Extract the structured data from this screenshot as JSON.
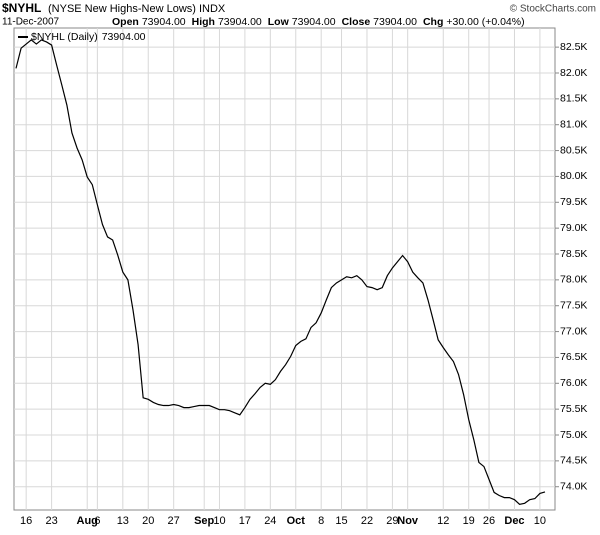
{
  "header": {
    "date": "11-Dec-2007",
    "fields": [
      {
        "label": "Open",
        "value": "73904.00"
      },
      {
        "label": "High",
        "value": "73904.00"
      },
      {
        "label": "Low",
        "value": "73904.00"
      },
      {
        "label": "Close",
        "value": "73904.00"
      },
      {
        "label": "Chg",
        "value": "+30.00 (+0.04%)"
      }
    ],
    "credit": "© StockCharts.com"
  },
  "chart_data": {
    "type": "line",
    "title": "$NYHL",
    "subtitle": "(NYSE New Highs-New Lows) INDX",
    "categories": [
      null,
      null,
      "16",
      null,
      null,
      null,
      null,
      "23",
      null,
      null,
      null,
      null,
      null,
      null,
      "Aug",
      null,
      "6",
      null,
      null,
      null,
      null,
      "13",
      null,
      null,
      null,
      null,
      "20",
      null,
      null,
      null,
      null,
      "27",
      null,
      null,
      null,
      null,
      null,
      "Sep",
      null,
      null,
      "10",
      null,
      null,
      null,
      null,
      "17",
      null,
      null,
      null,
      null,
      "24",
      null,
      null,
      null,
      null,
      "Oct",
      null,
      null,
      null,
      null,
      "8",
      null,
      null,
      null,
      "15",
      null,
      null,
      null,
      null,
      "22",
      null,
      null,
      null,
      null,
      "29",
      null,
      null,
      "Nov",
      null,
      null,
      null,
      null,
      null,
      null,
      "12",
      null,
      null,
      null,
      null,
      "19",
      null,
      null,
      null,
      "26",
      null,
      null,
      null,
      null,
      "Dec",
      null,
      null,
      null,
      null,
      "10",
      null
    ],
    "series": [
      {
        "name": "$NYHL (Daily)",
        "last": "73904.00",
        "color": "#000000",
        "values": [
          82090,
          82480,
          82560,
          82640,
          82560,
          82640,
          82600,
          82540,
          82150,
          81770,
          81380,
          80840,
          80550,
          80320,
          79990,
          79840,
          79450,
          79070,
          78830,
          78770,
          78480,
          78150,
          78000,
          77420,
          76750,
          75720,
          75690,
          75630,
          75590,
          75570,
          75570,
          75590,
          75570,
          75530,
          75530,
          75550,
          75570,
          75570,
          75570,
          75530,
          75490,
          75490,
          75470,
          75430,
          75390,
          75530,
          75690,
          75800,
          75920,
          76000,
          75980,
          76070,
          76230,
          76360,
          76520,
          76730,
          76810,
          76860,
          77080,
          77170,
          77360,
          77610,
          77850,
          77940,
          78000,
          78060,
          78040,
          78080,
          78000,
          77870,
          77850,
          77810,
          77850,
          78080,
          78230,
          78350,
          78470,
          78350,
          78150,
          78040,
          77940,
          77610,
          77230,
          76840,
          76690,
          76550,
          76420,
          76170,
          75780,
          75300,
          74910,
          74470,
          74390,
          74140,
          73890,
          73830,
          73790,
          73790,
          73750,
          73660,
          73680,
          73750,
          73770,
          73870,
          73900
        ]
      }
    ],
    "ylim": [
      73550,
      82870
    ],
    "yticks": [
      {
        "value": 74000,
        "label": "74.0K"
      },
      {
        "value": 74500,
        "label": "74.5K"
      },
      {
        "value": 75000,
        "label": "75.0K"
      },
      {
        "value": 75500,
        "label": "75.5K"
      },
      {
        "value": 76000,
        "label": "76.0K"
      },
      {
        "value": 76500,
        "label": "76.5K"
      },
      {
        "value": 77000,
        "label": "77.0K"
      },
      {
        "value": 77500,
        "label": "77.5K"
      },
      {
        "value": 78000,
        "label": "78.0K"
      },
      {
        "value": 78500,
        "label": "78.5K"
      },
      {
        "value": 79000,
        "label": "79.0K"
      },
      {
        "value": 79500,
        "label": "79.5K"
      },
      {
        "value": 80000,
        "label": "80.0K"
      },
      {
        "value": 80500,
        "label": "80.5K"
      },
      {
        "value": 81000,
        "label": "81.0K"
      },
      {
        "value": 81500,
        "label": "81.5K"
      },
      {
        "value": 82000,
        "label": "82.0K"
      },
      {
        "value": 82500,
        "label": "82.5K"
      }
    ],
    "grid": true
  }
}
